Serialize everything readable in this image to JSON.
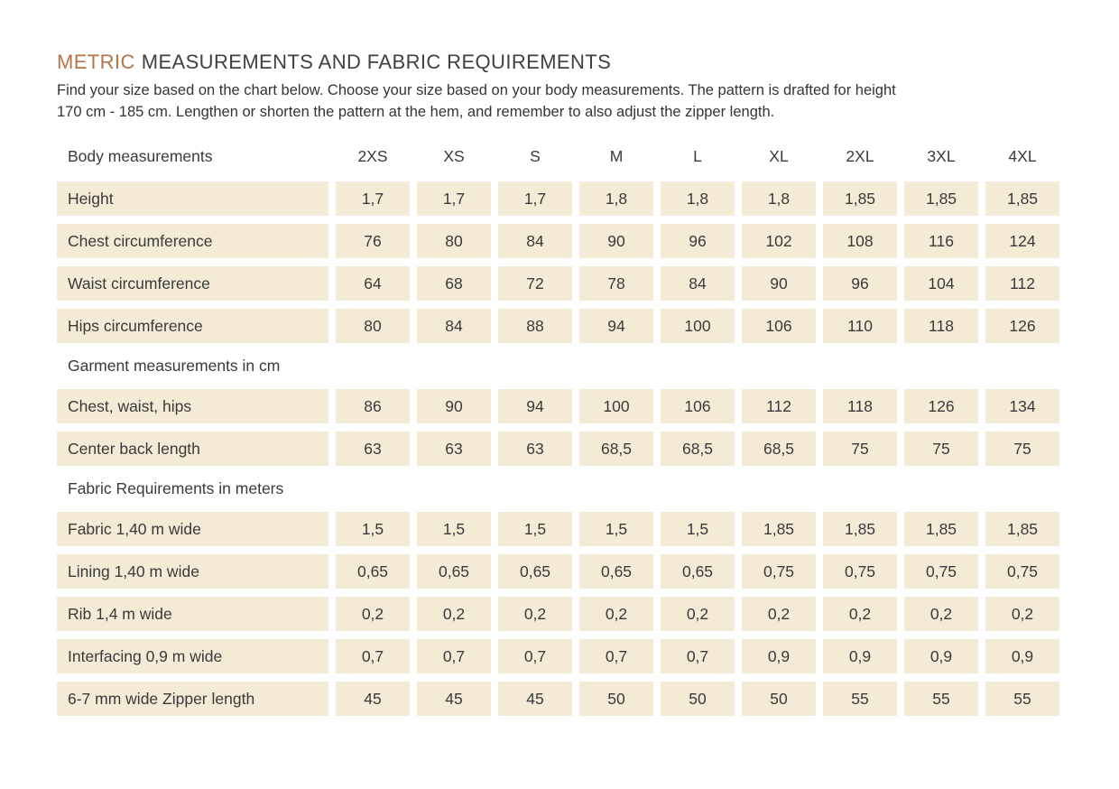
{
  "page": {
    "title": {
      "accent": "METRIC",
      "rest": "MEASUREMENTS AND FABRIC REQUIREMENTS"
    },
    "intro_line1": "Find your size based on the chart below. Choose your size based on your body measurements. The pattern is drafted for height",
    "intro_line2": "170 cm - 185 cm.  Lengthen or shorten the pattern at the hem, and remember to also adjust the zipper length."
  },
  "colors": {
    "accent": "#b5734a",
    "cell_background": "#f4ebd7",
    "text": "#3a3a3a"
  },
  "table": {
    "corner_label": "Body measurements",
    "size_columns": [
      "2XS",
      "XS",
      "S",
      "M",
      "L",
      "XL",
      "2XL",
      "3XL",
      "4XL"
    ],
    "sections": [
      {
        "heading": "",
        "rows": [
          {
            "label": "Height",
            "values": [
              "1,7",
              "1,7",
              "1,7",
              "1,8",
              "1,8",
              "1,8",
              "1,85",
              "1,85",
              "1,85"
            ]
          },
          {
            "label": "Chest circumference",
            "values": [
              "76",
              "80",
              "84",
              "90",
              "96",
              "102",
              "108",
              "116",
              "124"
            ]
          },
          {
            "label": "Waist circumference",
            "values": [
              "64",
              "68",
              "72",
              "78",
              "84",
              "90",
              "96",
              "104",
              "112"
            ]
          },
          {
            "label": "Hips circumference",
            "values": [
              "80",
              "84",
              "88",
              "94",
              "100",
              "106",
              "110",
              "118",
              "126"
            ]
          }
        ]
      },
      {
        "heading": "Garment measurements in cm",
        "rows": [
          {
            "label": "Chest, waist, hips",
            "values": [
              "86",
              "90",
              "94",
              "100",
              "106",
              "112",
              "118",
              "126",
              "134"
            ]
          },
          {
            "label": "Center back length",
            "values": [
              "63",
              "63",
              "63",
              "68,5",
              "68,5",
              "68,5",
              "75",
              "75",
              "75"
            ]
          }
        ]
      },
      {
        "heading": "Fabric Requirements in meters",
        "rows": [
          {
            "label": "Fabric 1,40 m wide",
            "values": [
              "1,5",
              "1,5",
              "1,5",
              "1,5",
              "1,5",
              "1,85",
              "1,85",
              "1,85",
              "1,85"
            ]
          },
          {
            "label": "Lining 1,40 m wide",
            "values": [
              "0,65",
              "0,65",
              "0,65",
              "0,65",
              "0,65",
              "0,75",
              "0,75",
              "0,75",
              "0,75"
            ]
          },
          {
            "label": "Rib 1,4 m wide",
            "values": [
              "0,2",
              "0,2",
              "0,2",
              "0,2",
              "0,2",
              "0,2",
              "0,2",
              "0,2",
              "0,2"
            ]
          },
          {
            "label": "Interfacing 0,9 m wide",
            "values": [
              "0,7",
              "0,7",
              "0,7",
              "0,7",
              "0,7",
              "0,9",
              "0,9",
              "0,9",
              "0,9"
            ]
          },
          {
            "label": "6-7 mm wide Zipper length",
            "values": [
              "45",
              "45",
              "45",
              "50",
              "50",
              "50",
              "55",
              "55",
              "55"
            ]
          }
        ]
      }
    ]
  }
}
